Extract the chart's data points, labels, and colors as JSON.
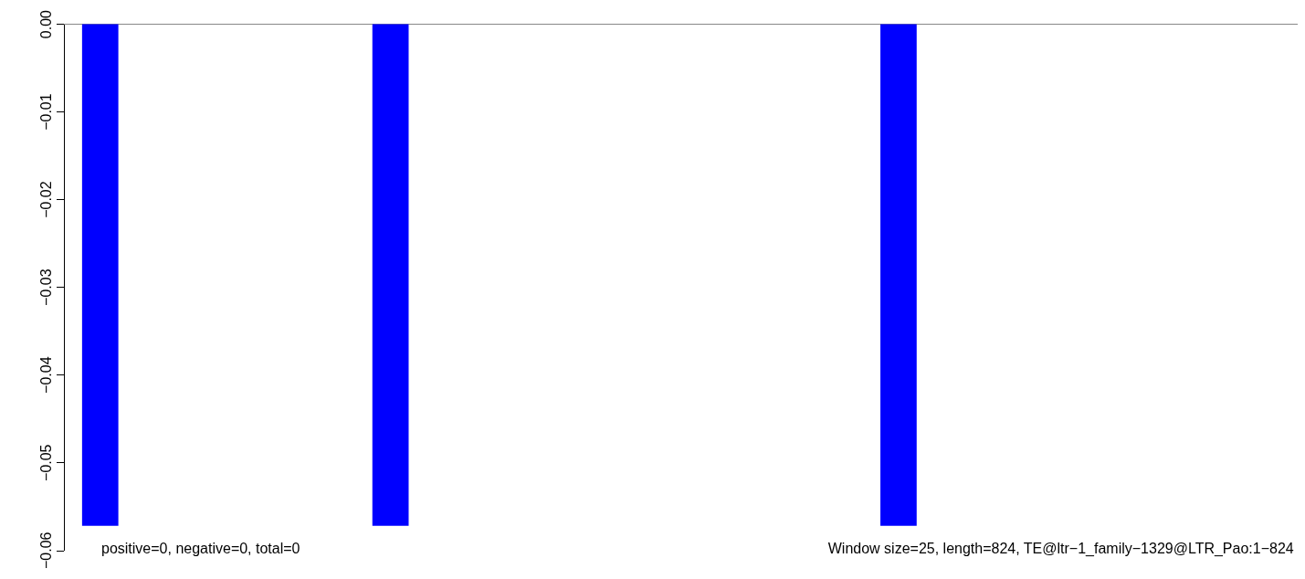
{
  "chart_data": {
    "type": "bar",
    "categories": [
      null,
      null,
      null,
      null,
      null,
      null,
      null,
      null,
      null,
      null,
      null,
      null,
      null,
      null,
      null,
      null,
      null
    ],
    "values": [
      -0.0572,
      0,
      0,
      0,
      -0.0572,
      0,
      0,
      0,
      0,
      0,
      0,
      -0.0572,
      0,
      0,
      0,
      0,
      0
    ],
    "color": "#0000ff",
    "ylim": [
      -0.06,
      0
    ],
    "yticks": [
      {
        "value": 0,
        "label": "0.00"
      },
      {
        "value": -0.01,
        "label": "−0.01"
      },
      {
        "value": -0.02,
        "label": "−0.02"
      },
      {
        "value": -0.03,
        "label": "−0.03"
      },
      {
        "value": -0.04,
        "label": "−0.04"
      },
      {
        "value": -0.05,
        "label": "−0.05"
      },
      {
        "value": -0.06,
        "label": "−0.06"
      }
    ],
    "tick_labels": "y",
    "annotations": [
      "positive=0, negative=0, total=0",
      "Window size=25, length=824, TE@ltr−1_family−1329@LTR_Pao:1−824"
    ]
  }
}
